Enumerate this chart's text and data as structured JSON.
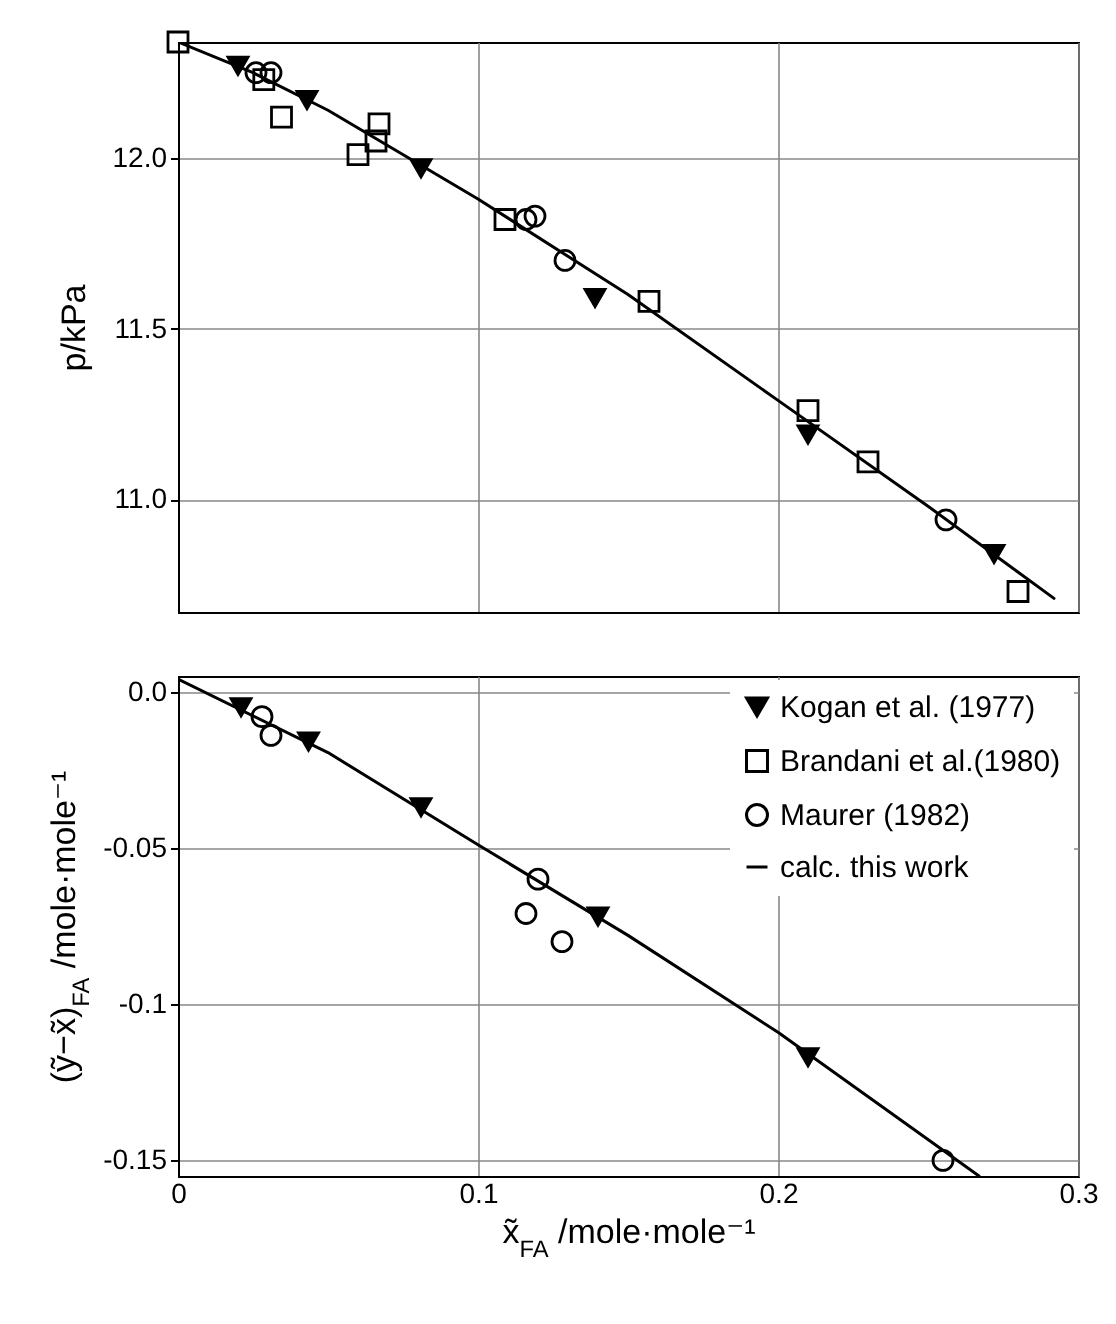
{
  "chart_data": [
    {
      "type": "scatter",
      "ylabel": "p/kPa",
      "xlim": [
        0,
        0.3
      ],
      "xticks": [
        0,
        0.1,
        0.2,
        0.3
      ],
      "ylim": [
        10.67,
        12.34
      ],
      "yticks": [
        {
          "value": 11,
          "label": "11.0"
        },
        {
          "value": 11.5,
          "label": "11.5"
        },
        {
          "value": 12,
          "label": "12.0"
        }
      ],
      "grid": true,
      "tick_labels": "y",
      "legend": false,
      "series": [
        {
          "type": "scatter",
          "marker": "triangle",
          "color": "#000000",
          "x": [
            0.02,
            0.043,
            0.081,
            0.139,
            0.21,
            0.272
          ],
          "values": [
            12.27,
            12.17,
            11.97,
            11.59,
            11.19,
            10.84
          ]
        },
        {
          "type": "scatter",
          "marker": "square",
          "color": "#000000",
          "x": [
            0,
            0.0286,
            0.0345,
            0.06,
            0.066,
            0.067,
            0.109,
            0.157,
            0.21,
            0.23,
            0.28
          ],
          "values": [
            12.34,
            12.23,
            12.12,
            12.01,
            12.05,
            12.1,
            11.82,
            11.58,
            11.26,
            11.11,
            10.73
          ]
        },
        {
          "type": "scatter",
          "marker": "circle",
          "color": "#000000",
          "x": [
            0.026,
            0.031,
            0.116,
            0.119,
            0.129,
            0.256
          ],
          "values": [
            12.25,
            12.25,
            11.82,
            11.83,
            11.7,
            10.94
          ]
        },
        {
          "type": "line",
          "marker": "none",
          "line_style": "solid",
          "color": "#000000",
          "x": [
            0,
            0.025,
            0.05,
            0.1,
            0.15,
            0.2,
            0.25,
            0.292
          ],
          "values": [
            12.34,
            12.25,
            12.14,
            11.88,
            11.6,
            11.29,
            10.98,
            10.71
          ]
        }
      ]
    },
    {
      "type": "scatter",
      "xlabel": "x̃$_{FA}$ /mole·mole⁻¹",
      "ylabel": "(ỹ−x̃)$_{FA}$ /mole·mole⁻¹",
      "xlim": [
        0,
        0.3
      ],
      "xticks": [
        0,
        0.1,
        0.2,
        0.3
      ],
      "ylim": [
        -0.155,
        0.005
      ],
      "yticks": [
        -0.15,
        -0.1,
        -0.05,
        {
          "value": 0,
          "label": "0.0"
        }
      ],
      "grid": true,
      "legend": "top right",
      "series": [
        {
          "name": "Kogan et al. (1977)",
          "type": "scatter",
          "marker": "triangle",
          "color": "#000000",
          "x": [
            0.021,
            0.0435,
            0.081,
            0.14,
            0.21
          ],
          "values": [
            -0.005,
            -0.016,
            -0.037,
            -0.072,
            -0.117
          ]
        },
        {
          "name": "Brandani et al.(1980)",
          "type": "scatter",
          "marker": "square",
          "color": "#000000"
        },
        {
          "name": "Maurer (1982)",
          "type": "scatter",
          "marker": "circle",
          "color": "#000000",
          "x": [
            0.028,
            0.031,
            0.12,
            0.116,
            0.128,
            0.255
          ],
          "values": [
            -0.008,
            -0.014,
            -0.06,
            -0.071,
            -0.08,
            -0.15
          ]
        },
        {
          "name": "calc. this work",
          "type": "line",
          "marker": "none",
          "line_style": "solid",
          "color": "#000000",
          "x": [
            0,
            0.05,
            0.1,
            0.15,
            0.2,
            0.267
          ],
          "values": [
            0.004,
            -0.0195,
            -0.049,
            -0.078,
            -0.109,
            -0.155
          ]
        }
      ]
    }
  ]
}
